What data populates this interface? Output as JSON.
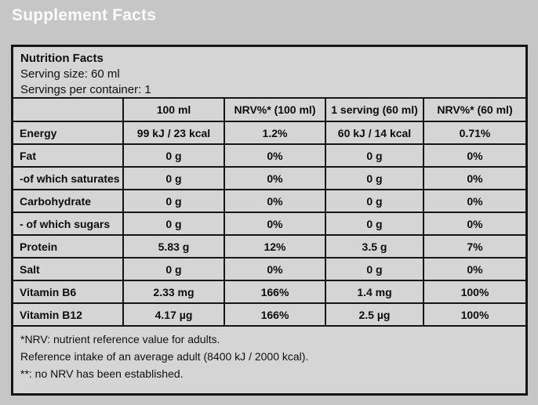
{
  "page_title": "Supplement Facts",
  "colors": {
    "page_bg": "#c6c6c6",
    "panel_bg": "#d5d5d5",
    "border": "#151515",
    "title_text": "#fbfbfb",
    "body_text": "#0d0d0d"
  },
  "panel": {
    "heading": "Nutrition Facts",
    "serving_size": "Serving size: 60 ml",
    "servings_per_container": "Servings per container: 1"
  },
  "table": {
    "headers": [
      "",
      "100 ml",
      "NRV%* (100 ml)",
      "1 serving (60 ml)",
      "NRV%*  (60 ml)"
    ],
    "rows": [
      {
        "label": "Energy",
        "per_100ml": "99 kJ / 23 kcal",
        "nrv_100ml": "1.2%",
        "per_serving": "60 kJ / 14 kcal",
        "nrv_serving": "0.71%"
      },
      {
        "label": "Fat",
        "per_100ml": "0 g",
        "nrv_100ml": "0%",
        "per_serving": "0 g",
        "nrv_serving": "0%"
      },
      {
        "label": "-of which saturates",
        "per_100ml": "0 g",
        "nrv_100ml": "0%",
        "per_serving": "0 g",
        "nrv_serving": "0%"
      },
      {
        "label": "Carbohydrate",
        "per_100ml": "0 g",
        "nrv_100ml": "0%",
        "per_serving": "0 g",
        "nrv_serving": "0%"
      },
      {
        "label": "- of which sugars",
        "per_100ml": "0 g",
        "nrv_100ml": "0%",
        "per_serving": "0 g",
        "nrv_serving": "0%"
      },
      {
        "label": "Protein",
        "per_100ml": "5.83 g",
        "nrv_100ml": "12%",
        "per_serving": "3.5 g",
        "nrv_serving": "7%"
      },
      {
        "label": "Salt",
        "per_100ml": "0 g",
        "nrv_100ml": "0%",
        "per_serving": "0 g",
        "nrv_serving": "0%"
      },
      {
        "label": "Vitamin B6",
        "per_100ml": "2.33 mg",
        "nrv_100ml": "166%",
        "per_serving": "1.4 mg",
        "nrv_serving": "100%"
      },
      {
        "label": "Vitamin B12",
        "per_100ml": "4.17 µg",
        "nrv_100ml": "166%",
        "per_serving": "2.5 µg",
        "nrv_serving": "100%"
      }
    ]
  },
  "footnotes": [
    "*NRV: nutrient reference value for adults.",
    "Reference intake of an average adult (8400 kJ / 2000 kcal).",
    "**: no NRV has been established."
  ]
}
